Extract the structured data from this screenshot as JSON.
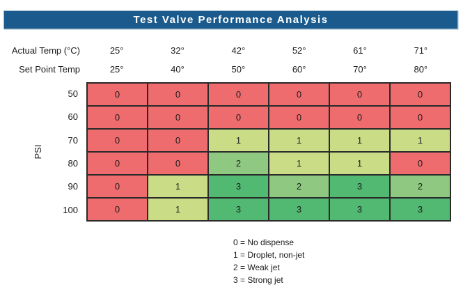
{
  "title": "Test Valve Performance Analysis",
  "colors": {
    "title_bar": "#1a5a8c",
    "title_text": "#ffffff",
    "grid_border": "#2a2a2a",
    "level0": "#ee6b6e",
    "level1": "#cadc86",
    "level2": "#8fc981",
    "level3": "#52b973"
  },
  "chart_data": {
    "type": "heatmap",
    "title": "Test Valve Performance Analysis",
    "col_headers": [
      {
        "label": "Actual Temp (°C)",
        "values": [
          "25°",
          "32°",
          "42°",
          "52°",
          "61°",
          "71°"
        ]
      },
      {
        "label": "Set Point Temp",
        "values": [
          "25°",
          "40°",
          "50°",
          "60°",
          "70°",
          "80°"
        ]
      }
    ],
    "row_axis_label": "PSI",
    "row_labels": [
      "50",
      "60",
      "70",
      "80",
      "90",
      "100"
    ],
    "values": [
      [
        0,
        0,
        0,
        0,
        0,
        0
      ],
      [
        0,
        0,
        0,
        0,
        0,
        0
      ],
      [
        0,
        0,
        1,
        1,
        1,
        1
      ],
      [
        0,
        0,
        2,
        1,
        1,
        0
      ],
      [
        0,
        1,
        3,
        2,
        3,
        2
      ],
      [
        0,
        1,
        3,
        3,
        3,
        3
      ]
    ],
    "color_scale": {
      "0": "#ee6b6e",
      "1": "#cadc86",
      "2": "#8fc981",
      "3": "#52b973"
    },
    "legend": [
      "0 = No dispense",
      "1 = Droplet, non-jet",
      "2 = Weak jet",
      "3 = Strong jet"
    ],
    "layout": {
      "grid": "on",
      "legend_position": "bottom-center",
      "row_axis_side": "left"
    }
  }
}
